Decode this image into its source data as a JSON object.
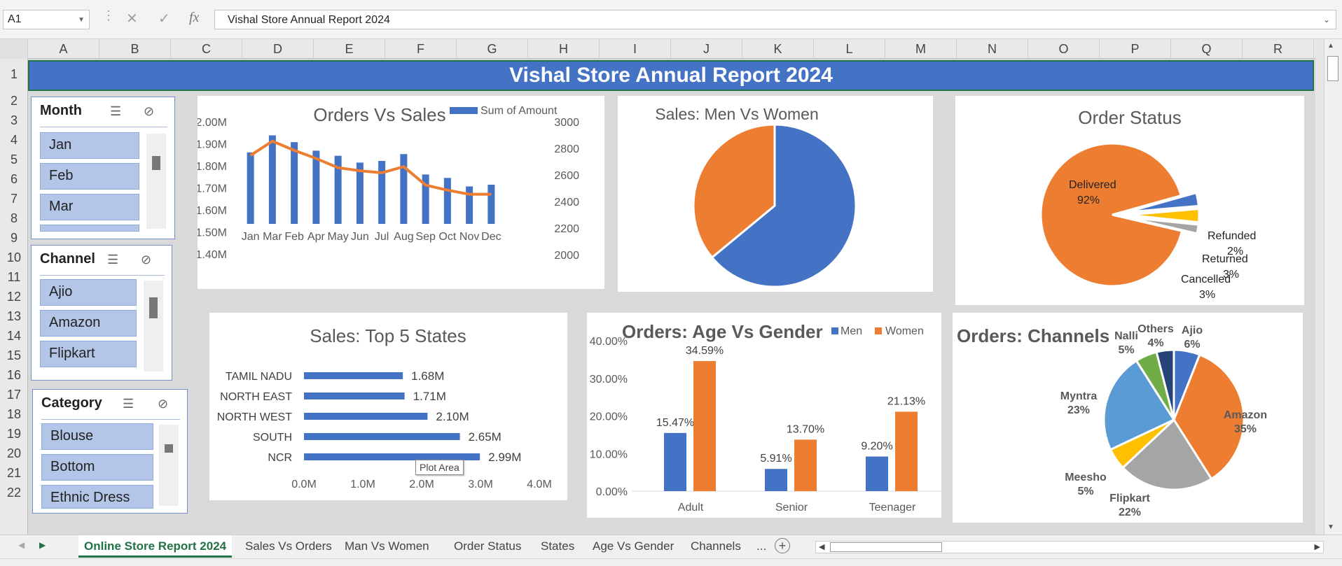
{
  "formula_bar": {
    "name_box": "A1",
    "fx": "fx",
    "formula": "Vishal Store Annual Report 2024"
  },
  "columns": [
    "A",
    "B",
    "C",
    "D",
    "E",
    "F",
    "G",
    "H",
    "I",
    "J",
    "K",
    "L",
    "M",
    "N",
    "O",
    "P",
    "Q",
    "R"
  ],
  "rows": [
    "1",
    "2",
    "3",
    "4",
    "5",
    "6",
    "7",
    "8",
    "9",
    "10",
    "11",
    "12",
    "13",
    "14",
    "15",
    "16",
    "17",
    "18",
    "19",
    "20",
    "21",
    "22"
  ],
  "banner": "Vishal Store Annual Report 2024",
  "slicers": [
    {
      "title": "Month",
      "items": [
        "Jan",
        "Feb",
        "Mar"
      ]
    },
    {
      "title": "Channel",
      "items": [
        "Ajio",
        "Amazon",
        "Flipkart"
      ]
    },
    {
      "title": "Category",
      "items": [
        "Blouse",
        "Bottom",
        "Ethnic Dress"
      ]
    }
  ],
  "charts": {
    "orders_vs_sales": {
      "title": "Orders Vs Sales",
      "legend": "Sum of Amount",
      "y_left": [
        "2.00M",
        "1.90M",
        "1.80M",
        "1.70M",
        "1.60M",
        "1.50M",
        "1.40M"
      ],
      "y_right": [
        "3000",
        "2800",
        "2600",
        "2400",
        "2200",
        "2000"
      ]
    },
    "men_vs_women": {
      "title": "Sales: Men Vs Women"
    },
    "order_status": {
      "title": "Order Status"
    },
    "top5_states": {
      "title": "Sales: Top 5 States",
      "ticks": [
        "0.0M",
        "1.0M",
        "2.0M",
        "3.0M",
        "4.0M"
      ],
      "tooltip": "Plot Area"
    },
    "age_vs_gender": {
      "title": "Orders: Age Vs Gender",
      "ticks": [
        "40.00%",
        "30.00%",
        "20.00%",
        "10.00%",
        "0.00%"
      ]
    },
    "channels": {
      "title": "Orders: Channels"
    }
  },
  "chart_data": [
    {
      "type": "bar",
      "title": "Orders Vs Sales",
      "categories": [
        "Jan",
        "Mar",
        "Feb",
        "Apr",
        "May",
        "Jun",
        "Jul",
        "Aug",
        "Sep",
        "Oct",
        "Nov",
        "Dec"
      ],
      "series": [
        {
          "name": "Sum of Amount",
          "values": [
            1.82,
            1.92,
            1.88,
            1.83,
            1.8,
            1.76,
            1.77,
            1.81,
            1.69,
            1.67,
            1.62,
            1.63
          ]
        },
        {
          "values": [
            2670,
            2810,
            2720,
            2640,
            2550,
            2520,
            2500,
            2560,
            2380,
            2330,
            2290,
            2290
          ]
        }
      ],
      "ylim": [
        1.4,
        2.0
      ],
      "y2lim": [
        2000,
        3000
      ]
    },
    {
      "type": "pie",
      "title": "Sales: Men Vs Women",
      "values": [
        64,
        36
      ],
      "colors": [
        "#4472c4",
        "#ed7d31"
      ]
    },
    {
      "type": "pie",
      "title": "Order Status",
      "categories": [
        "Delivered",
        "Cancelled",
        "Returned",
        "Refunded"
      ],
      "labels": [
        "92%",
        "3%",
        "3%",
        "2%"
      ],
      "values": [
        92,
        3,
        3,
        2
      ],
      "colors": [
        "#ed7d31",
        "#4472c4",
        "#ffc000",
        "#a5a5a5"
      ]
    },
    {
      "type": "bar",
      "title": "Sales: Top 5 States",
      "categories": [
        "TAMIL NADU",
        "NORTH EAST",
        "NORTH WEST",
        "SOUTH",
        "NCR"
      ],
      "values": [
        1.68,
        1.71,
        2.1,
        2.65,
        2.99
      ],
      "labels": [
        "1.68M",
        "1.71M",
        "2.10M",
        "2.65M",
        "2.99M"
      ],
      "xlim": [
        0,
        4
      ]
    },
    {
      "type": "bar",
      "title": "Orders: Age Vs Gender",
      "categories": [
        "Adult",
        "Senior",
        "Teenager"
      ],
      "series": [
        {
          "name": "Men",
          "values": [
            15.47,
            5.91,
            9.2
          ],
          "labels": [
            "15.47%",
            "5.91%",
            "9.20%"
          ]
        },
        {
          "name": "Women",
          "values": [
            34.59,
            13.7,
            21.13
          ],
          "labels": [
            "34.59%",
            "13.70%",
            "21.13%"
          ]
        }
      ],
      "ylim": [
        0,
        40
      ]
    },
    {
      "type": "pie",
      "title": "Orders: Channels",
      "categories": [
        "Ajio",
        "Amazon",
        "Flipkart",
        "Meesho",
        "Myntra",
        "Nalli",
        "Others"
      ],
      "labels": [
        "6%",
        "35%",
        "22%",
        "5%",
        "23%",
        "5%",
        "4%"
      ],
      "values": [
        6,
        35,
        22,
        5,
        23,
        5,
        4
      ],
      "colors": [
        "#4472c4",
        "#ed7d31",
        "#a5a5a5",
        "#ffc000",
        "#5b9bd5",
        "#70ad47",
        "#264478"
      ]
    }
  ],
  "tabs": [
    "Online Store Report 2024",
    "Sales Vs Orders",
    "Man Vs Women",
    "Order Status",
    "States",
    "Age Vs Gender",
    "Channels",
    "..."
  ]
}
